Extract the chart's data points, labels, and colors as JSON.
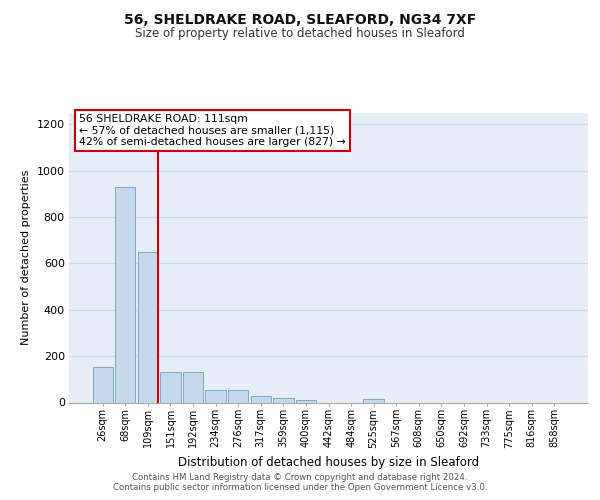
{
  "title1": "56, SHELDRAKE ROAD, SLEAFORD, NG34 7XF",
  "title2": "Size of property relative to detached houses in Sleaford",
  "xlabel": "Distribution of detached houses by size in Sleaford",
  "ylabel": "Number of detached properties",
  "categories": [
    "26sqm",
    "68sqm",
    "109sqm",
    "151sqm",
    "192sqm",
    "234sqm",
    "276sqm",
    "317sqm",
    "359sqm",
    "400sqm",
    "442sqm",
    "484sqm",
    "525sqm",
    "567sqm",
    "608sqm",
    "650sqm",
    "692sqm",
    "733sqm",
    "775sqm",
    "816sqm",
    "858sqm"
  ],
  "values": [
    155,
    930,
    650,
    130,
    130,
    55,
    55,
    30,
    18,
    10,
    0,
    0,
    15,
    0,
    0,
    0,
    0,
    0,
    0,
    0,
    0
  ],
  "bar_color": "#c6d9ec",
  "bar_edge_color": "#7baac9",
  "property_line_bin": 2,
  "property_line_color": "#cc0000",
  "ylim": [
    0,
    1250
  ],
  "yticks": [
    0,
    200,
    400,
    600,
    800,
    1000,
    1200
  ],
  "annotation_text": "56 SHELDRAKE ROAD: 111sqm\n← 57% of detached houses are smaller (1,115)\n42% of semi-detached houses are larger (827) →",
  "annotation_box_color": "#ffffff",
  "annotation_box_edge": "#cc0000",
  "footer1": "Contains HM Land Registry data © Crown copyright and database right 2024.",
  "footer2": "Contains public sector information licensed under the Open Government Licence v3.0.",
  "background_color": "#e8eef8",
  "grid_color": "#d0d8e8"
}
